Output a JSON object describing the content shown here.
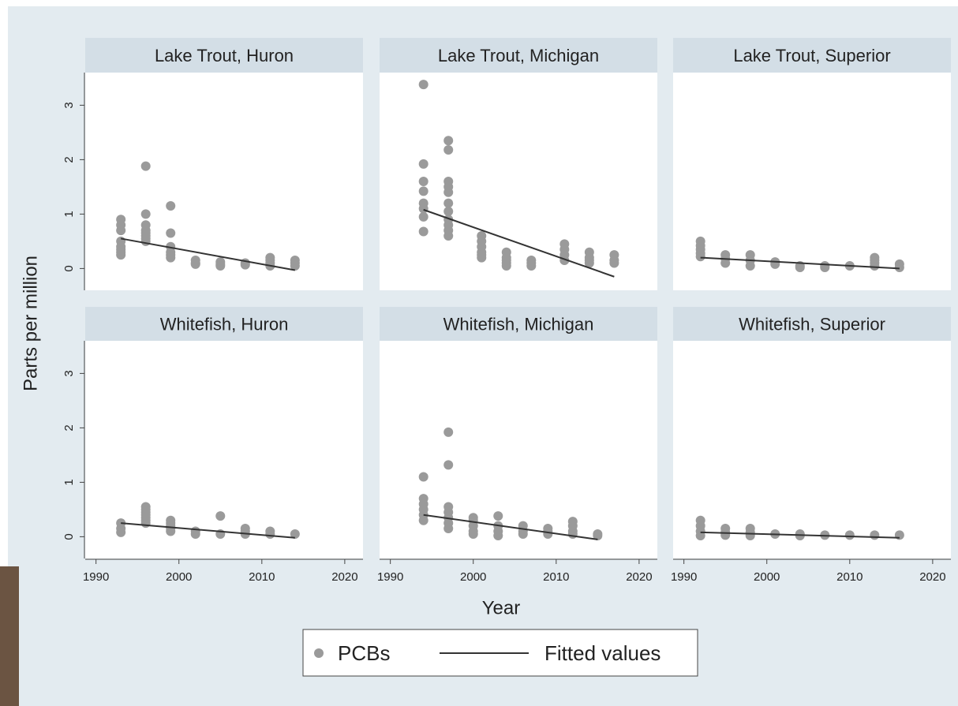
{
  "chart_data": {
    "type": "scatter",
    "xlabel": "Year",
    "ylabel": "Parts per million",
    "xlim": [
      1988.7,
      2022.2
    ],
    "xticks": [
      1990,
      2000,
      2010,
      2020
    ],
    "ylim": [
      -0.4,
      3.6
    ],
    "yticks": [
      0,
      1,
      2,
      3
    ],
    "series": [
      {
        "name": "PCBs",
        "color": "#9a9a9a"
      },
      {
        "name": "Fitted values",
        "color": "#333333"
      }
    ],
    "panels": [
      {
        "title": "Lake Trout, Huron",
        "points": {
          "x": [
            1993,
            1993,
            1993,
            1993,
            1993,
            1993,
            1993,
            1993,
            1996,
            1996,
            1996,
            1996,
            1996,
            1996,
            1996,
            1996,
            1999,
            1999,
            1999,
            1999,
            1999,
            1999,
            2002,
            2002,
            2002,
            2005,
            2005,
            2005,
            2008,
            2008,
            2011,
            2011,
            2011,
            2011,
            2014,
            2014,
            2014
          ],
          "values": [
            0.9,
            0.8,
            0.7,
            0.5,
            0.4,
            0.35,
            0.3,
            0.25,
            1.88,
            1.0,
            0.8,
            0.7,
            0.65,
            0.6,
            0.55,
            0.5,
            1.15,
            0.65,
            0.4,
            0.3,
            0.25,
            0.2,
            0.15,
            0.1,
            0.08,
            0.12,
            0.08,
            0.05,
            0.1,
            0.07,
            0.2,
            0.15,
            0.1,
            0.05,
            0.15,
            0.1,
            0.05
          ]
        },
        "fit": {
          "x": [
            1993,
            2014
          ],
          "values": [
            0.55,
            -0.03
          ]
        }
      },
      {
        "title": "Lake Trout,  Michigan",
        "points": {
          "x": [
            1994,
            1994,
            1994,
            1994,
            1994,
            1994,
            1994,
            1994,
            1997,
            1997,
            1997,
            1997,
            1997,
            1997,
            1997,
            1997,
            1997,
            1997,
            1997,
            2001,
            2001,
            2001,
            2001,
            2001,
            2001,
            2004,
            2004,
            2004,
            2004,
            2004,
            2007,
            2007,
            2007,
            2011,
            2011,
            2011,
            2011,
            2014,
            2014,
            2014,
            2014,
            2017,
            2017,
            2017
          ],
          "values": [
            3.38,
            1.92,
            1.6,
            1.42,
            1.2,
            1.1,
            0.95,
            0.68,
            2.35,
            2.18,
            1.6,
            1.5,
            1.4,
            1.2,
            1.05,
            0.9,
            0.8,
            0.7,
            0.6,
            0.6,
            0.5,
            0.4,
            0.3,
            0.25,
            0.2,
            0.3,
            0.2,
            0.15,
            0.1,
            0.05,
            0.15,
            0.1,
            0.05,
            0.45,
            0.35,
            0.25,
            0.15,
            0.3,
            0.2,
            0.15,
            0.1,
            0.25,
            0.15,
            0.1
          ]
        },
        "fit": {
          "x": [
            1994,
            2017
          ],
          "values": [
            1.08,
            -0.15
          ]
        }
      },
      {
        "title": "Lake Trout, Superior",
        "points": {
          "x": [
            1992,
            1992,
            1992,
            1992,
            1992,
            1995,
            1995,
            1995,
            1998,
            1998,
            1998,
            2001,
            2001,
            2004,
            2004,
            2007,
            2007,
            2010,
            2013,
            2013,
            2013,
            2013,
            2016,
            2016
          ],
          "values": [
            0.5,
            0.42,
            0.35,
            0.28,
            0.22,
            0.25,
            0.18,
            0.1,
            0.25,
            0.15,
            0.05,
            0.12,
            0.08,
            0.05,
            0.02,
            0.05,
            0.02,
            0.05,
            0.2,
            0.15,
            0.1,
            0.05,
            0.08,
            0.02
          ]
        },
        "fit": {
          "x": [
            1992,
            2016
          ],
          "values": [
            0.2,
            0.0
          ]
        }
      },
      {
        "title": "Whitefish, Huron",
        "points": {
          "x": [
            1993,
            1993,
            1993,
            1996,
            1996,
            1996,
            1996,
            1996,
            1996,
            1996,
            1999,
            1999,
            1999,
            1999,
            1999,
            2002,
            2002,
            2005,
            2005,
            2008,
            2008,
            2008,
            2011,
            2011,
            2014
          ],
          "values": [
            0.25,
            0.15,
            0.08,
            0.55,
            0.5,
            0.45,
            0.4,
            0.35,
            0.3,
            0.25,
            0.3,
            0.25,
            0.2,
            0.15,
            0.1,
            0.1,
            0.05,
            0.38,
            0.05,
            0.15,
            0.1,
            0.05,
            0.1,
            0.05,
            0.05
          ]
        },
        "fit": {
          "x": [
            1993,
            2014
          ],
          "values": [
            0.25,
            -0.02
          ]
        }
      },
      {
        "title": "Whitefish, Michigan",
        "points": {
          "x": [
            1994,
            1994,
            1994,
            1994,
            1994,
            1994,
            1997,
            1997,
            1997,
            1997,
            1997,
            1997,
            1997,
            2000,
            2000,
            2000,
            2000,
            2000,
            2003,
            2003,
            2003,
            2003,
            2006,
            2006,
            2006,
            2009,
            2009,
            2009,
            2012,
            2012,
            2012,
            2012,
            2015,
            2015
          ],
          "values": [
            1.1,
            0.7,
            0.6,
            0.5,
            0.4,
            0.3,
            1.92,
            1.32,
            0.55,
            0.45,
            0.35,
            0.25,
            0.15,
            0.35,
            0.3,
            0.2,
            0.1,
            0.05,
            0.38,
            0.2,
            0.1,
            0.02,
            0.2,
            0.1,
            0.05,
            0.15,
            0.1,
            0.05,
            0.28,
            0.2,
            0.1,
            0.05,
            0.05,
            0.02
          ]
        },
        "fit": {
          "x": [
            1994,
            2015
          ],
          "values": [
            0.4,
            -0.05
          ]
        }
      },
      {
        "title": "Whitefish, Superior",
        "points": {
          "x": [
            1992,
            1992,
            1992,
            1992,
            1995,
            1995,
            1995,
            1998,
            1998,
            1998,
            2001,
            2004,
            2004,
            2007,
            2010,
            2013,
            2016
          ],
          "values": [
            0.3,
            0.2,
            0.1,
            0.02,
            0.15,
            0.08,
            0.03,
            0.15,
            0.08,
            0.02,
            0.05,
            0.05,
            0.02,
            0.03,
            0.03,
            0.03,
            0.03
          ]
        },
        "fit": {
          "x": [
            1992,
            2016
          ],
          "values": [
            0.08,
            -0.02
          ]
        }
      }
    ]
  }
}
